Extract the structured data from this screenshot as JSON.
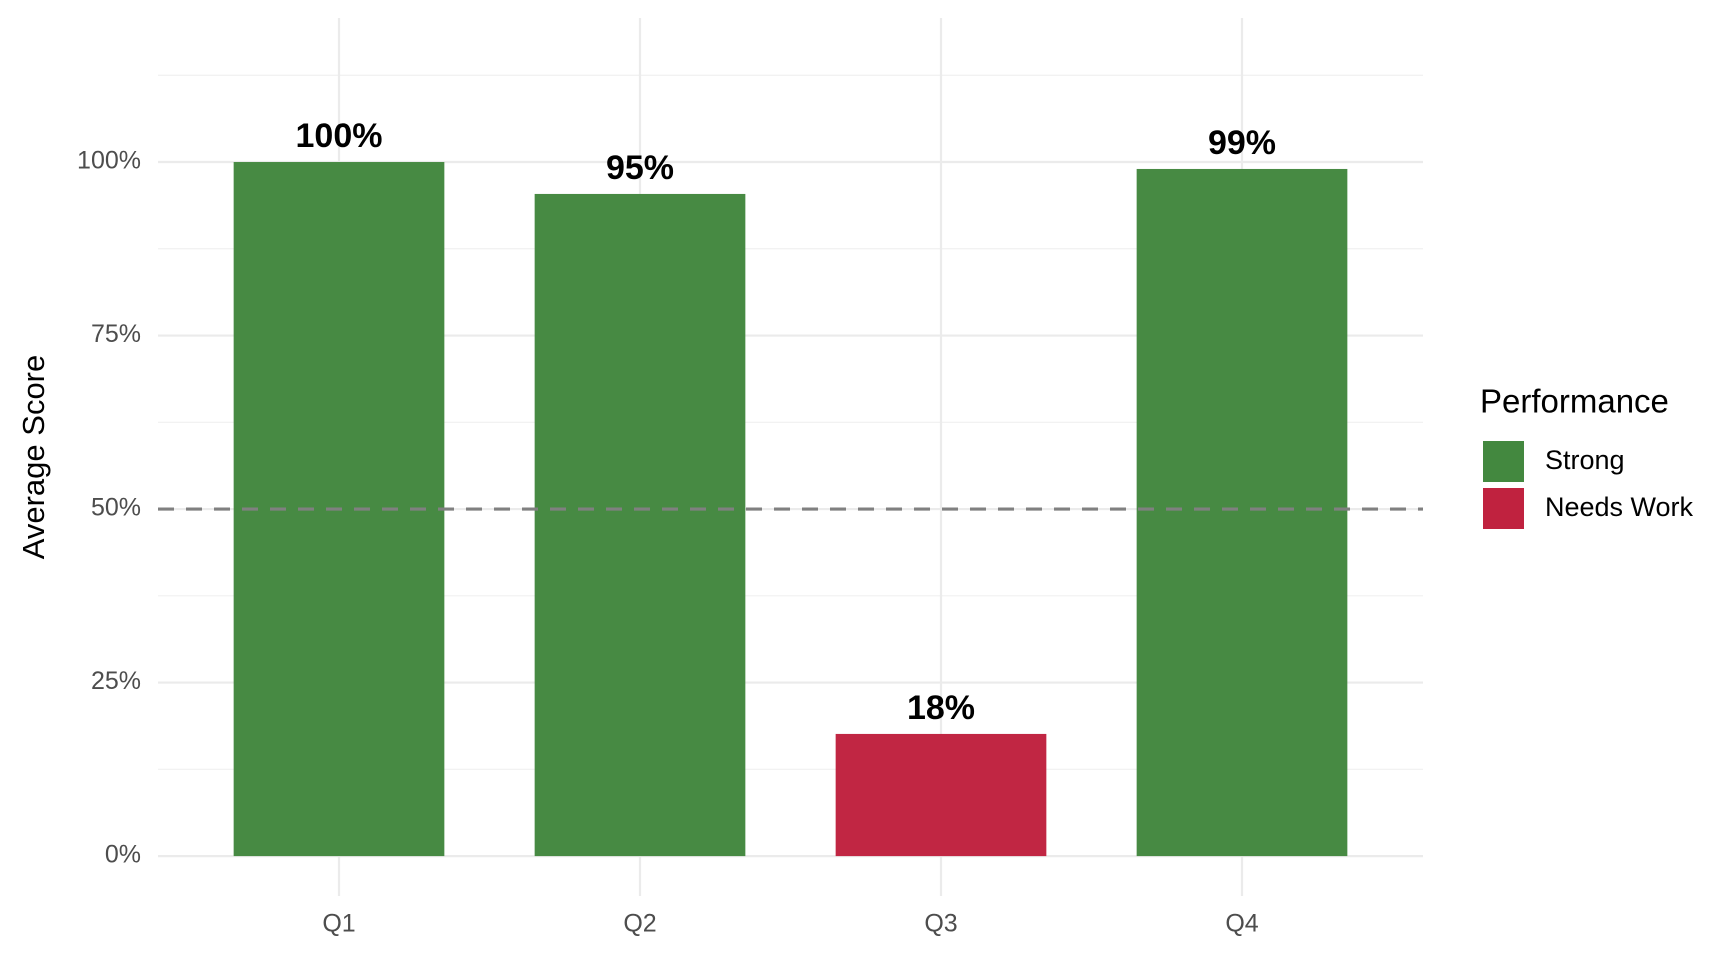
{
  "chart_data": {
    "type": "bar",
    "y_axis_label": "Average Score",
    "categories": [
      "Q1",
      "Q2",
      "Q3",
      "Q4"
    ],
    "values": [
      100,
      95.4,
      17.6,
      99
    ],
    "value_labels": [
      "100%",
      "95%",
      "18%",
      "99%"
    ],
    "colors": [
      "#43883f",
      "#43883f",
      "#c0223f",
      "#43883f"
    ],
    "ylim": [
      -5.75,
      120.75
    ],
    "yticks": [
      {
        "value": 0,
        "label": "0%"
      },
      {
        "value": 25,
        "label": "25%"
      },
      {
        "value": 50,
        "label": "50%"
      },
      {
        "value": 75,
        "label": "75%"
      },
      {
        "value": 100,
        "label": "100%"
      }
    ],
    "grid": true,
    "reference_line": 50,
    "legend": {
      "title": "Performance",
      "position": "right",
      "entries": [
        {
          "name": "Strong",
          "color": "#43883f"
        },
        {
          "name": "Needs Work",
          "color": "#c0223f"
        }
      ]
    }
  }
}
